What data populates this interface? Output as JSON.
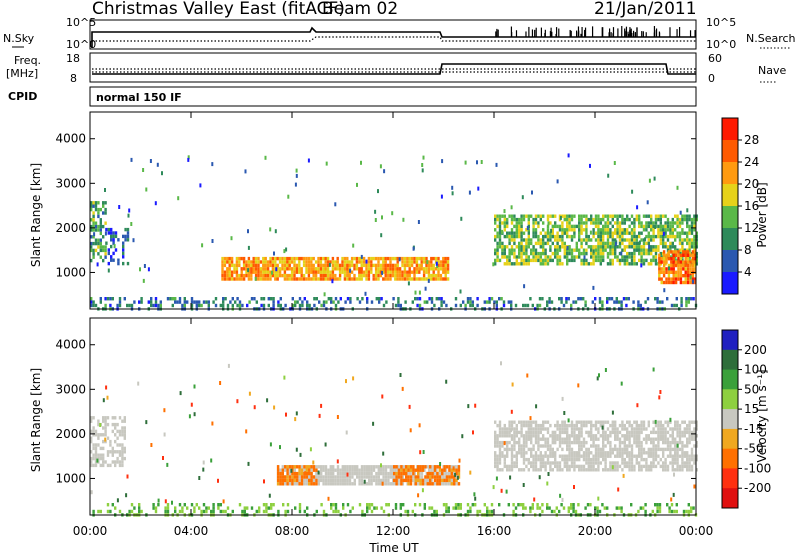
{
  "title": "Christmas Valley East (fitACF)",
  "beam": "Beam 02",
  "date": "21/Jan/2011",
  "strip_labels": {
    "nsky": "N.Sky",
    "nsearch": "N.Search",
    "freq_line1": "Freq.",
    "freq_line2": "[MHz]",
    "nave": "Nave",
    "cpid": "CPID",
    "cpid_value": "normal 150 IF"
  },
  "strip_ticks": {
    "noise_left": [
      "10^5",
      "10^0"
    ],
    "noise_right": [
      "10^5",
      "10^0"
    ],
    "freq_left": [
      "18",
      "8"
    ],
    "nave_right": [
      "60",
      "0"
    ]
  },
  "colors": {
    "power_scale": [
      "#1a1aff",
      "#2a58b0",
      "#2e8a5a",
      "#5ab848",
      "#e6d21a",
      "#ff9a10",
      "#ff5a00",
      "#ff1a00"
    ],
    "velocity_scale": [
      "#2020c0",
      "#2e6e3a",
      "#3aa03a",
      "#8ed040",
      "#c8c8c0",
      "#f0a820",
      "#ff7000",
      "#ff3010",
      "#e01010"
    ],
    "ground_scatter": "#c8c8c0"
  },
  "chart_data": [
    {
      "type": "heatmap",
      "panel": "power",
      "ylabel": "Slant Range [km]",
      "yticks": [
        "1000",
        "2000",
        "3000",
        "4000"
      ],
      "ylim": [
        180,
        4600
      ],
      "xlim": [
        0,
        24
      ],
      "colorbar_label": "Power [dB]",
      "colorbar_ticks": [
        "4",
        "8",
        "12",
        "16",
        "20",
        "24",
        "28"
      ],
      "regions": [
        {
          "t0": 0.0,
          "t1": 0.6,
          "r0": 1300,
          "r1": 2600,
          "value": 12,
          "density": 0.6
        },
        {
          "t0": 0.6,
          "t1": 1.5,
          "r0": 1200,
          "r1": 2000,
          "value": 6,
          "density": 0.35
        },
        {
          "t0": 5.2,
          "t1": 14.2,
          "r0": 850,
          "r1": 1350,
          "value": 22,
          "density": 0.85
        },
        {
          "t0": 16.0,
          "t1": 24.0,
          "r0": 1200,
          "r1": 2300,
          "value": 14,
          "density": 0.7
        },
        {
          "t0": 0.0,
          "t1": 24.0,
          "r0": 180,
          "r1": 450,
          "value": 8,
          "density": 0.35
        },
        {
          "t0": 22.5,
          "t1": 24.0,
          "r0": 800,
          "r1": 1500,
          "value": 24,
          "density": 0.8
        }
      ]
    },
    {
      "type": "heatmap",
      "panel": "velocity",
      "ylabel": "Slant Range [km]",
      "xlabel": "Time UT",
      "xticks": [
        "00:00",
        "04:00",
        "08:00",
        "12:00",
        "16:00",
        "20:00",
        "00:00"
      ],
      "yticks": [
        "1000",
        "2000",
        "3000",
        "4000"
      ],
      "ylim": [
        180,
        4600
      ],
      "xlim": [
        0,
        24
      ],
      "colorbar_label": "Velocity [m s⁻¹]",
      "colorbar_ticks": [
        "200",
        "100",
        "50",
        "15",
        "-15",
        "-50",
        "-100",
        "-200"
      ],
      "regions": [
        {
          "t0": 0.0,
          "t1": 1.4,
          "r0": 1300,
          "r1": 2400,
          "value": 0,
          "density": 0.5
        },
        {
          "t0": 7.4,
          "t1": 14.6,
          "r0": 850,
          "r1": 1300,
          "value": 0,
          "density": 0.85
        },
        {
          "t0": 7.4,
          "t1": 9.0,
          "r0": 850,
          "r1": 1300,
          "value": -40,
          "density": 0.7
        },
        {
          "t0": 12.0,
          "t1": 14.6,
          "r0": 850,
          "r1": 1300,
          "value": -40,
          "density": 0.7
        },
        {
          "t0": 16.0,
          "t1": 24.0,
          "r0": 1200,
          "r1": 2300,
          "value": 0,
          "density": 0.7
        },
        {
          "t0": 0.0,
          "t1": 24.0,
          "r0": 180,
          "r1": 450,
          "value": 30,
          "density": 0.3
        }
      ]
    }
  ]
}
